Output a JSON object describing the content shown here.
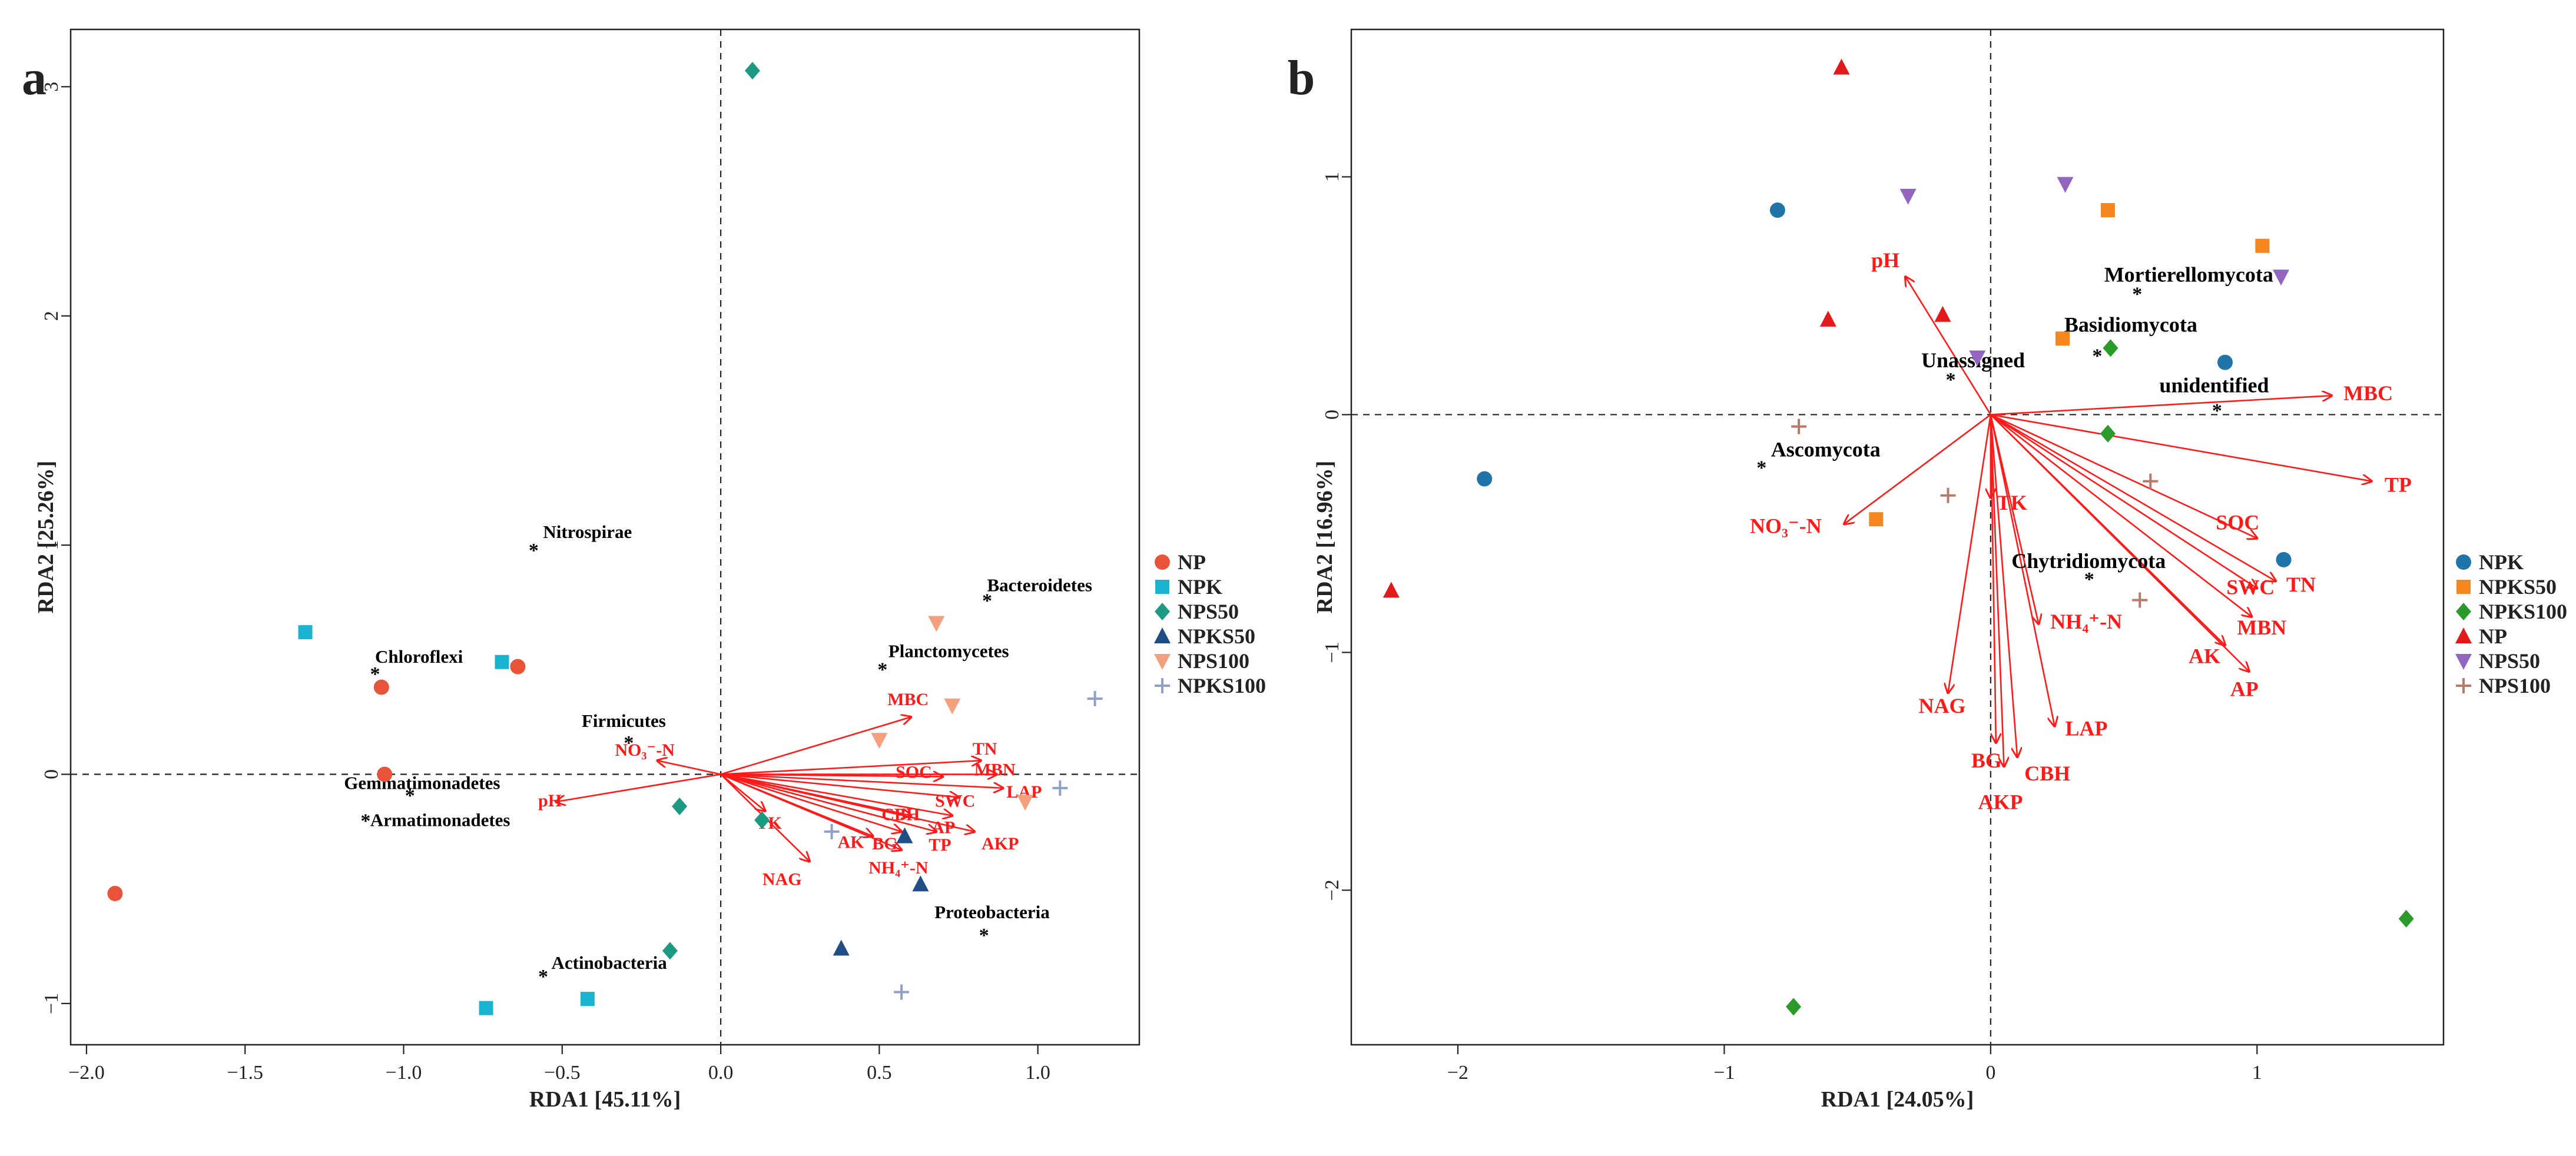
{
  "chart_data": [
    {
      "type": "scatter",
      "panel_label": "a",
      "xlabel": "RDA1  [45.11%]",
      "ylabel": "RDA2  [25.26%]",
      "xlim": [
        -2.05,
        1.32
      ],
      "ylim": [
        -1.18,
        3.25
      ],
      "xticks": [
        -2.0,
        -1.5,
        -1.0,
        -0.5,
        0.0,
        0.5,
        1.0
      ],
      "xtick_labels": [
        "−2.0",
        "−1.5",
        "−1.0",
        "−0.5",
        "0.0",
        "0.5",
        "1.0"
      ],
      "yticks": [
        -1,
        0,
        1,
        2,
        3
      ],
      "ytick_labels": [
        "−1",
        "0",
        "1",
        "2",
        "3"
      ],
      "grid": false,
      "reference_lines": {
        "x": 0,
        "y": 0
      },
      "legend_position": "right",
      "series": [
        {
          "name": "NP",
          "marker": "circle",
          "color": "#e8533a",
          "points": [
            [
              -1.07,
              0.38
            ],
            [
              -1.06,
              0.0
            ],
            [
              -0.64,
              0.47
            ],
            [
              -1.91,
              -0.52
            ]
          ]
        },
        {
          "name": "NPK",
          "marker": "square",
          "color": "#1ab4d0",
          "points": [
            [
              -1.31,
              0.62
            ],
            [
              -0.69,
              0.49
            ],
            [
              -0.74,
              -1.02
            ],
            [
              -0.42,
              -0.98
            ]
          ]
        },
        {
          "name": "NPS50",
          "marker": "diamond",
          "color": "#1c9a82",
          "points": [
            [
              0.1,
              3.07
            ],
            [
              -0.13,
              -0.14
            ],
            [
              0.13,
              -0.2
            ],
            [
              -0.16,
              -0.77
            ]
          ]
        },
        {
          "name": "NPKS50",
          "marker": "triangle",
          "color": "#1f4e86",
          "points": [
            [
              0.58,
              -0.27
            ],
            [
              0.63,
              -0.48
            ],
            [
              0.38,
              -0.76
            ]
          ]
        },
        {
          "name": "NPS100",
          "marker": "triangle-down",
          "color": "#f4a07e",
          "points": [
            [
              0.68,
              0.66
            ],
            [
              0.73,
              0.3
            ],
            [
              0.5,
              0.15
            ],
            [
              0.96,
              -0.12
            ]
          ]
        },
        {
          "name": "NPKS100",
          "marker": "plus",
          "color": "#8fa1c7",
          "points": [
            [
              1.18,
              0.33
            ],
            [
              1.07,
              -0.06
            ],
            [
              0.35,
              -0.25
            ],
            [
              0.57,
              -0.95
            ]
          ]
        }
      ],
      "taxa": [
        {
          "name": "Nitrospirae",
          "x": -0.59,
          "y": 0.98
        },
        {
          "name": "Chloroflexi",
          "x": -1.09,
          "y": 0.44
        },
        {
          "name": "Firmicutes",
          "x": -0.29,
          "y": 0.14
        },
        {
          "name": "Gemmatimonadetes",
          "x": -0.98,
          "y": -0.09
        },
        {
          "name": "Armatimonadetes",
          "x": -1.12,
          "y": -0.2
        },
        {
          "name": "Actinobacteria",
          "x": -0.56,
          "y": -0.88
        },
        {
          "name": "Bacteroidetes",
          "x": 0.84,
          "y": 0.76
        },
        {
          "name": "Planctomycetes",
          "x": 0.51,
          "y": 0.46
        },
        {
          "name": "Proteobacteria",
          "x": 0.83,
          "y": -0.7
        }
      ],
      "env_vectors": [
        {
          "name": "MBC",
          "x": 0.6,
          "y": 0.25
        },
        {
          "name": "NO₃⁻-N",
          "x": -0.2,
          "y": 0.06
        },
        {
          "name": "pH",
          "x": -0.52,
          "y": -0.12
        },
        {
          "name": "TN",
          "x": 0.82,
          "y": 0.06
        },
        {
          "name": "MBN",
          "x": 0.87,
          "y": 0.0
        },
        {
          "name": "SOC",
          "x": 0.7,
          "y": -0.01
        },
        {
          "name": "LAP",
          "x": 0.89,
          "y": -0.06
        },
        {
          "name": "SWC",
          "x": 0.75,
          "y": -0.1
        },
        {
          "name": "AP",
          "x": 0.73,
          "y": -0.18
        },
        {
          "name": "CBH",
          "x": 0.6,
          "y": -0.18
        },
        {
          "name": "AKP",
          "x": 0.8,
          "y": -0.25
        },
        {
          "name": "TP",
          "x": 0.68,
          "y": -0.25
        },
        {
          "name": "BG",
          "x": 0.57,
          "y": -0.25
        },
        {
          "name": "AK",
          "x": 0.48,
          "y": -0.27
        },
        {
          "name": "NH₄⁺-N",
          "x": 0.57,
          "y": -0.33
        },
        {
          "name": "TK",
          "x": 0.14,
          "y": -0.16
        },
        {
          "name": "NAG",
          "x": 0.28,
          "y": -0.38
        }
      ]
    },
    {
      "type": "scatter",
      "panel_label": "b",
      "xlabel": "RDA1  [24.05%]",
      "ylabel": "RDA2  [16.96%]",
      "xlim": [
        -2.4,
        1.7
      ],
      "ylim": [
        -2.65,
        1.62
      ],
      "xticks": [
        -2,
        -1,
        0,
        1
      ],
      "xtick_labels": [
        "−2",
        "−1",
        "0",
        "1"
      ],
      "yticks": [
        -2,
        -1,
        0,
        1
      ],
      "ytick_labels": [
        "−2",
        "−1",
        "0",
        "1"
      ],
      "grid": false,
      "reference_lines": {
        "x": 0,
        "y": 0
      },
      "legend_position": "right",
      "series": [
        {
          "name": "NPK",
          "marker": "circle",
          "color": "#1f74a8",
          "points": [
            [
              -0.8,
              0.86
            ],
            [
              -1.9,
              -0.27
            ],
            [
              0.88,
              0.22
            ],
            [
              1.1,
              -0.61
            ]
          ]
        },
        {
          "name": "NPKS50",
          "marker": "square",
          "color": "#f5871e",
          "points": [
            [
              0.44,
              0.86
            ],
            [
              1.02,
              0.71
            ],
            [
              0.27,
              0.32
            ],
            [
              -0.43,
              -0.44
            ]
          ]
        },
        {
          "name": "NPKS100",
          "marker": "diamond",
          "color": "#2a9a2a",
          "points": [
            [
              0.45,
              0.28
            ],
            [
              0.44,
              -0.08
            ],
            [
              1.56,
              -2.12
            ],
            [
              -0.74,
              -2.49
            ]
          ]
        },
        {
          "name": "NP",
          "marker": "triangle",
          "color": "#e31a1c",
          "points": [
            [
              -0.56,
              1.46
            ],
            [
              -0.61,
              0.4
            ],
            [
              -0.18,
              0.42
            ],
            [
              -2.25,
              -0.74
            ]
          ]
        },
        {
          "name": "NPS50",
          "marker": "triangle-down",
          "color": "#9265c0",
          "points": [
            [
              -0.31,
              0.92
            ],
            [
              0.28,
              0.97
            ],
            [
              1.09,
              0.58
            ],
            [
              -0.05,
              0.24
            ]
          ]
        },
        {
          "name": "NPS100",
          "marker": "plus",
          "color": "#b77a6a",
          "points": [
            [
              -0.72,
              -0.05
            ],
            [
              -0.16,
              -0.34
            ],
            [
              0.6,
              -0.28
            ],
            [
              0.56,
              -0.78
            ]
          ]
        }
      ],
      "taxa": [
        {
          "name": "Mortierellomycota",
          "x": 0.55,
          "y": 0.51
        },
        {
          "name": "Basidiomycota",
          "x": 0.4,
          "y": 0.25
        },
        {
          "name": "Unassigned",
          "x": -0.15,
          "y": 0.15
        },
        {
          "name": "unidentified",
          "x": 0.85,
          "y": 0.02
        },
        {
          "name": "Ascomycota",
          "x": -0.86,
          "y": -0.22
        },
        {
          "name": "Chytridiomycota",
          "x": 0.37,
          "y": -0.69
        }
      ],
      "env_vectors": [
        {
          "name": "pH",
          "x": -0.32,
          "y": 0.58
        },
        {
          "name": "MBC",
          "x": 1.28,
          "y": 0.08
        },
        {
          "name": "TP",
          "x": 1.43,
          "y": -0.28
        },
        {
          "name": "SOC",
          "x": 1.0,
          "y": -0.52
        },
        {
          "name": "TN",
          "x": 1.07,
          "y": -0.7
        },
        {
          "name": "SWC",
          "x": 1.0,
          "y": -0.73
        },
        {
          "name": "MBN",
          "x": 0.98,
          "y": -0.85
        },
        {
          "name": "AK",
          "x": 0.88,
          "y": -0.97
        },
        {
          "name": "AP",
          "x": 0.97,
          "y": -1.08
        },
        {
          "name": "NO₃⁻-N",
          "x": -0.55,
          "y": -0.46
        },
        {
          "name": "TK",
          "x": 0.0,
          "y": -0.35
        },
        {
          "name": "NH₄⁺-N",
          "x": 0.18,
          "y": -0.88
        },
        {
          "name": "NAG",
          "x": -0.16,
          "y": -1.17
        },
        {
          "name": "BG",
          "x": 0.02,
          "y": -1.38
        },
        {
          "name": "CBH",
          "x": 0.1,
          "y": -1.44
        },
        {
          "name": "AKP",
          "x": 0.05,
          "y": -1.48
        },
        {
          "name": "LAP",
          "x": 0.24,
          "y": -1.31
        }
      ]
    }
  ]
}
